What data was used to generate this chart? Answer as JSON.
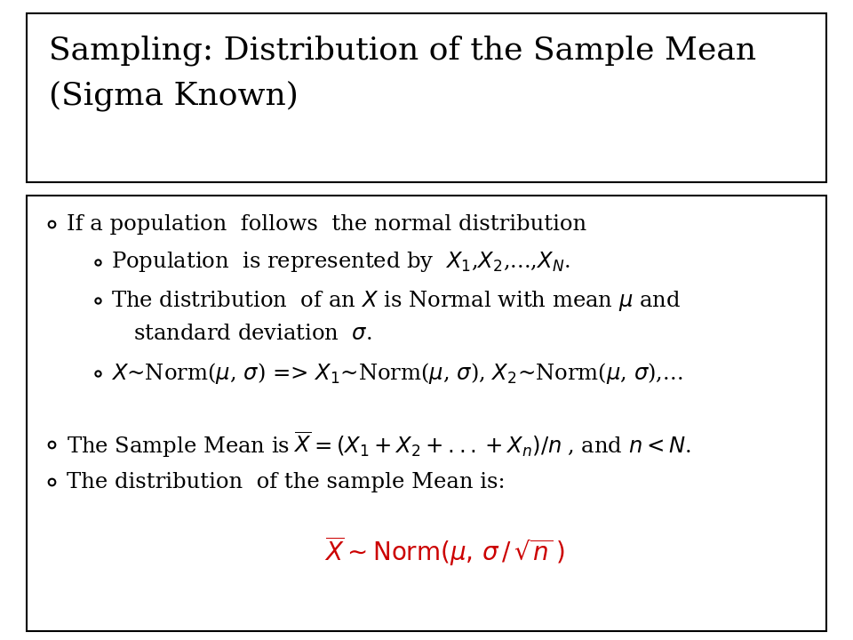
{
  "title_line1": "Sampling: Distribution of the Sample Mean",
  "title_line2": "(Sigma Known)",
  "background_color": "#ffffff",
  "title_border_color": "#000000",
  "content_border_color": "#000000",
  "text_color": "#000000",
  "red_color": "#cc0000",
  "title_fontsize": 26,
  "body_fontsize": 17.5,
  "formula_fontsize": 20
}
